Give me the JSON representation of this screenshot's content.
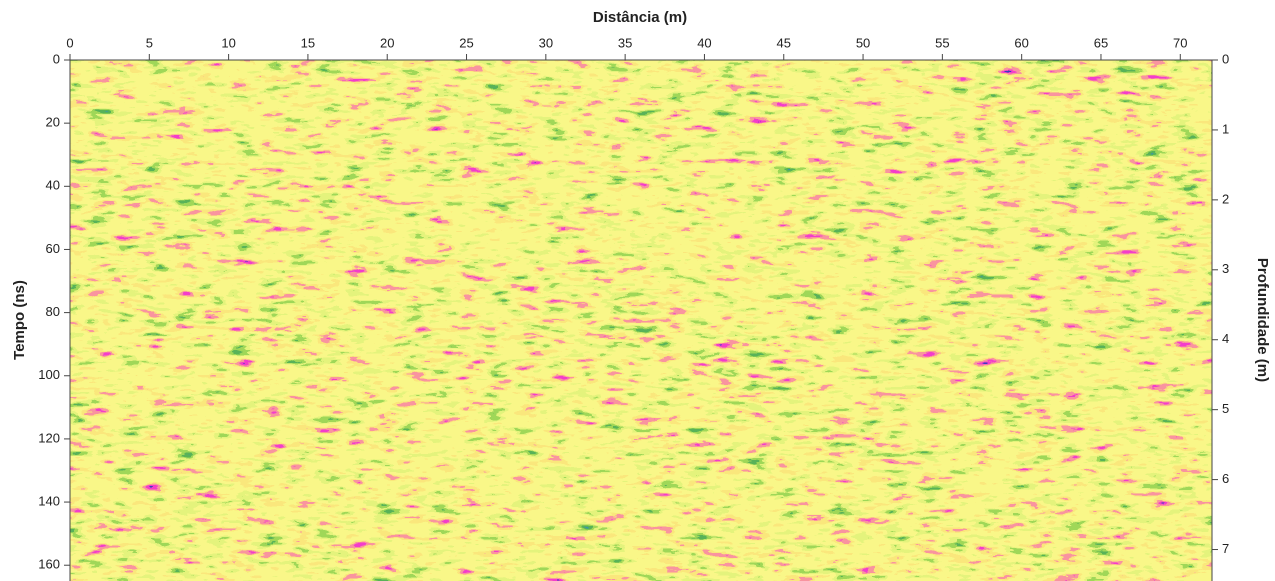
{
  "chart_data": {
    "type": "radargram",
    "xlabel": "Distância (m)",
    "ylabel": "Tempo (ns)",
    "y2label": "Profundidade (m)",
    "xlim": [
      0,
      72
    ],
    "xticks": [
      0,
      5,
      10,
      15,
      20,
      25,
      30,
      35,
      40,
      45,
      50,
      55,
      60,
      65,
      70
    ],
    "ylim": [
      0,
      165
    ],
    "yticks": [
      0,
      20,
      40,
      60,
      80,
      100,
      120,
      140,
      160
    ],
    "y2lim": [
      0,
      7.45
    ],
    "y2ticks": [
      0,
      1,
      2,
      3,
      4,
      5,
      6,
      7
    ]
  }
}
